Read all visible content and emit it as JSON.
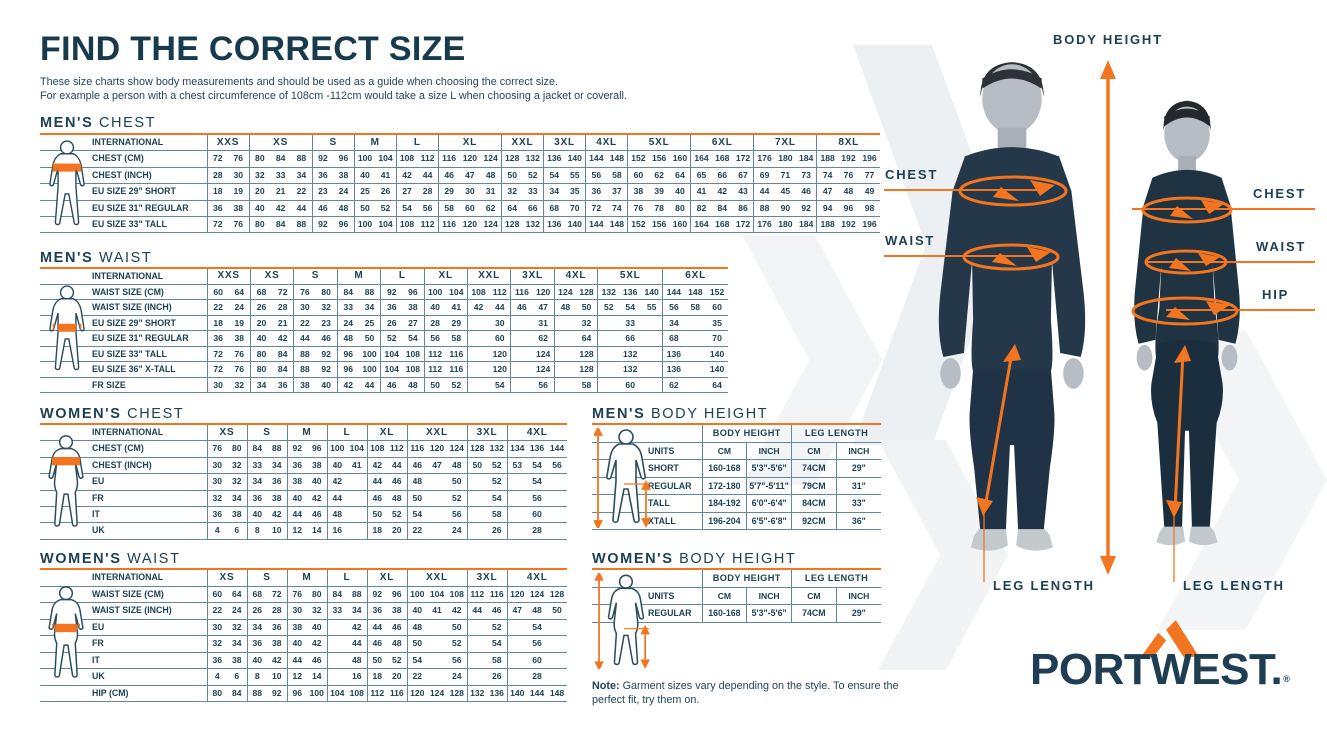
{
  "colors": {
    "navy": "#1d4154",
    "orange": "#f4751f",
    "grid_line": "#64879a",
    "title": "#173a4d"
  },
  "header": {
    "title": "FIND THE CORRECT SIZE",
    "subtitle": [
      "These size charts show body measurements and should be used as a guide when choosing the correct size.",
      "For example a person with a chest circumference of 108cm -112cm would take a size L when choosing a jacket or coverall."
    ]
  },
  "size_tables": {
    "mens_chest": {
      "title_strong": "MEN'S",
      "title_light": "CHEST",
      "corner_label": "INTERNATIONAL",
      "label_w": 167,
      "groups": [
        {
          "label": "XXS",
          "span": 2
        },
        {
          "label": "XS",
          "span": 3
        },
        {
          "label": "S",
          "span": 2
        },
        {
          "label": "M",
          "span": 2
        },
        {
          "label": "L",
          "span": 2
        },
        {
          "label": "XL",
          "span": 3
        },
        {
          "label": "XXL",
          "span": 2
        },
        {
          "label": "3XL",
          "span": 2
        },
        {
          "label": "4XL",
          "span": 2
        },
        {
          "label": "5XL",
          "span": 3
        },
        {
          "label": "6XL",
          "span": 3
        },
        {
          "label": "7XL",
          "span": 3
        },
        {
          "label": "8XL",
          "span": 3
        }
      ],
      "rows": [
        {
          "label": "CHEST (CM)",
          "cells": [
            "72",
            "76",
            "80",
            "84",
            "88",
            "92",
            "96",
            "100",
            "104",
            "108",
            "112",
            "116",
            "120",
            "124",
            "128",
            "132",
            "136",
            "140",
            "144",
            "148",
            "152",
            "156",
            "160",
            "164",
            "168",
            "172",
            "176",
            "180",
            "184",
            "188",
            "192",
            "196"
          ]
        },
        {
          "label": "CHEST (INCH)",
          "cells": [
            "28",
            "30",
            "32",
            "33",
            "34",
            "36",
            "38",
            "40",
            "41",
            "42",
            "44",
            "46",
            "47",
            "48",
            "50",
            "52",
            "54",
            "55",
            "56",
            "58",
            "60",
            "62",
            "64",
            "65",
            "66",
            "67",
            "69",
            "71",
            "73",
            "74",
            "76",
            "77"
          ]
        },
        {
          "label": "EU SIZE 29\" SHORT",
          "cells": [
            "18",
            "19",
            "20",
            "21",
            "22",
            "23",
            "24",
            "25",
            "26",
            "27",
            "28",
            "29",
            "30",
            "31",
            "32",
            "33",
            "34",
            "35",
            "36",
            "37",
            "38",
            "39",
            "40",
            "41",
            "42",
            "43",
            "44",
            "45",
            "46",
            "47",
            "48",
            "49"
          ]
        },
        {
          "label": "EU SIZE 31\" REGULAR",
          "cells": [
            "36",
            "38",
            "40",
            "42",
            "44",
            "46",
            "48",
            "50",
            "52",
            "54",
            "56",
            "58",
            "60",
            "62",
            "64",
            "66",
            "68",
            "70",
            "72",
            "74",
            "76",
            "78",
            "80",
            "82",
            "84",
            "86",
            "88",
            "90",
            "92",
            "94",
            "96",
            "98"
          ]
        },
        {
          "label": "EU SIZE 33\" TALL",
          "cells": [
            "72",
            "76",
            "80",
            "84",
            "88",
            "92",
            "96",
            "100",
            "104",
            "108",
            "112",
            "116",
            "120",
            "124",
            "128",
            "132",
            "136",
            "140",
            "144",
            "148",
            "152",
            "156",
            "160",
            "164",
            "168",
            "172",
            "176",
            "180",
            "184",
            "188",
            "192",
            "196"
          ]
        }
      ]
    },
    "mens_waist": {
      "title_strong": "MEN'S",
      "title_light": "WAIST",
      "corner_label": "INTERNATIONAL",
      "label_w": 167,
      "groups": [
        {
          "label": "XXS",
          "span": 2
        },
        {
          "label": "XS",
          "span": 2
        },
        {
          "label": "S",
          "span": 2
        },
        {
          "label": "M",
          "span": 2
        },
        {
          "label": "L",
          "span": 2
        },
        {
          "label": "XL",
          "span": 2
        },
        {
          "label": "XXL",
          "span": 2
        },
        {
          "label": "3XL",
          "span": 2
        },
        {
          "label": "4XL",
          "span": 2
        },
        {
          "label": "5XL",
          "span": 3
        },
        {
          "label": "6XL",
          "span": 3
        }
      ],
      "rows": [
        {
          "label": "WAIST SIZE (CM)",
          "cells": [
            "60",
            "64",
            "68",
            "72",
            "76",
            "80",
            "84",
            "88",
            "92",
            "96",
            "100",
            "104",
            "108",
            "112",
            "116",
            "120",
            "124",
            "128",
            "132",
            "136",
            "140",
            "144",
            "148",
            "152"
          ]
        },
        {
          "label": "WAIST SIZE (INCH)",
          "cells": [
            "22",
            "24",
            "26",
            "28",
            "30",
            "32",
            "33",
            "34",
            "36",
            "38",
            "40",
            "41",
            "42",
            "44",
            "46",
            "47",
            "48",
            "50",
            "52",
            "54",
            "55",
            "56",
            "58",
            "60"
          ]
        },
        {
          "label": "EU SIZE 29\" SHORT",
          "cells": [
            "18",
            "19",
            "20",
            "21",
            "22",
            "23",
            "24",
            "25",
            "26",
            "27",
            "28",
            "29",
            "",
            "30",
            "",
            "31",
            "",
            "32",
            "",
            "33",
            "",
            "34",
            "",
            "35"
          ]
        },
        {
          "label": "EU SIZE 31\" REGULAR",
          "cells": [
            "36",
            "38",
            "40",
            "42",
            "44",
            "46",
            "48",
            "50",
            "52",
            "54",
            "56",
            "58",
            "",
            "60",
            "",
            "62",
            "",
            "64",
            "",
            "66",
            "",
            "68",
            "",
            "70"
          ]
        },
        {
          "label": "EU SIZE 33\" TALL",
          "cells": [
            "72",
            "76",
            "80",
            "84",
            "88",
            "92",
            "96",
            "100",
            "104",
            "108",
            "112",
            "116",
            "",
            "120",
            "",
            "124",
            "",
            "128",
            "",
            "132",
            "",
            "136",
            "",
            "140"
          ]
        },
        {
          "label": "EU SIZE 36\" X-TALL",
          "cells": [
            "72",
            "76",
            "80",
            "84",
            "88",
            "92",
            "96",
            "100",
            "104",
            "108",
            "112",
            "116",
            "",
            "120",
            "",
            "124",
            "",
            "128",
            "",
            "132",
            "",
            "136",
            "",
            "140"
          ]
        },
        {
          "label": "FR SIZE",
          "cells": [
            "30",
            "32",
            "34",
            "36",
            "38",
            "40",
            "42",
            "44",
            "46",
            "48",
            "50",
            "52",
            "",
            "54",
            "",
            "56",
            "",
            "58",
            "",
            "60",
            "",
            "62",
            "",
            "64"
          ]
        }
      ]
    },
    "womens_chest": {
      "title_strong": "WOMEN'S",
      "title_light": "CHEST",
      "corner_label": "INTERNATIONAL",
      "label_w": 167,
      "groups": [
        {
          "label": "XS",
          "span": 2
        },
        {
          "label": "S",
          "span": 2
        },
        {
          "label": "M",
          "span": 2
        },
        {
          "label": "L",
          "span": 2
        },
        {
          "label": "XL",
          "span": 2
        },
        {
          "label": "XXL",
          "span": 3
        },
        {
          "label": "3XL",
          "span": 2
        },
        {
          "label": "4XL",
          "span": 3
        }
      ],
      "rows": [
        {
          "label": "CHEST (CM)",
          "cells": [
            "76",
            "80",
            "84",
            "88",
            "92",
            "96",
            "100",
            "104",
            "108",
            "112",
            "116",
            "120",
            "124",
            "128",
            "132",
            "134",
            "136",
            "144"
          ]
        },
        {
          "label": "CHEST (INCH)",
          "cells": [
            "30",
            "32",
            "33",
            "34",
            "36",
            "38",
            "40",
            "41",
            "42",
            "44",
            "46",
            "47",
            "48",
            "50",
            "52",
            "53",
            "54",
            "56"
          ]
        },
        {
          "label": "EU",
          "cells": [
            "30",
            "32",
            "34",
            "36",
            "38",
            "40",
            "42",
            "",
            "44",
            "46",
            "48",
            "",
            "50",
            "",
            "52",
            "",
            "54",
            ""
          ]
        },
        {
          "label": "FR",
          "cells": [
            "32",
            "34",
            "36",
            "38",
            "40",
            "42",
            "44",
            "",
            "46",
            "48",
            "50",
            "",
            "52",
            "",
            "54",
            "",
            "56",
            ""
          ]
        },
        {
          "label": "IT",
          "cells": [
            "36",
            "38",
            "40",
            "42",
            "44",
            "46",
            "48",
            "",
            "50",
            "52",
            "54",
            "",
            "56",
            "",
            "58",
            "",
            "60",
            ""
          ]
        },
        {
          "label": "UK",
          "cells": [
            "4",
            "6",
            "8",
            "10",
            "12",
            "14",
            "16",
            "",
            "18",
            "20",
            "22",
            "",
            "24",
            "",
            "26",
            "",
            "28",
            ""
          ]
        }
      ]
    },
    "womens_waist": {
      "title_strong": "WOMEN'S",
      "title_light": "WAIST",
      "corner_label": "INTERNATIONAL",
      "label_w": 167,
      "groups": [
        {
          "label": "XS",
          "span": 2
        },
        {
          "label": "S",
          "span": 2
        },
        {
          "label": "M",
          "span": 2
        },
        {
          "label": "L",
          "span": 2
        },
        {
          "label": "XL",
          "span": 2
        },
        {
          "label": "XXL",
          "span": 3
        },
        {
          "label": "3XL",
          "span": 2
        },
        {
          "label": "4XL",
          "span": 3
        }
      ],
      "rows": [
        {
          "label": "WAIST SIZE (CM)",
          "cells": [
            "60",
            "64",
            "68",
            "72",
            "76",
            "80",
            "84",
            "88",
            "92",
            "96",
            "100",
            "104",
            "108",
            "112",
            "116",
            "120",
            "124",
            "128"
          ]
        },
        {
          "label": "WAIST SIZE (INCH)",
          "cells": [
            "22",
            "24",
            "26",
            "28",
            "30",
            "32",
            "33",
            "34",
            "36",
            "38",
            "40",
            "41",
            "42",
            "44",
            "46",
            "47",
            "48",
            "50"
          ]
        },
        {
          "label": "EU",
          "cells": [
            "30",
            "32",
            "34",
            "36",
            "38",
            "40",
            "",
            "42",
            "44",
            "46",
            "48",
            "",
            "50",
            "",
            "52",
            "",
            "54",
            ""
          ]
        },
        {
          "label": "FR",
          "cells": [
            "32",
            "34",
            "36",
            "38",
            "40",
            "42",
            "",
            "44",
            "46",
            "48",
            "50",
            "",
            "52",
            "",
            "54",
            "",
            "56",
            ""
          ]
        },
        {
          "label": "IT",
          "cells": [
            "36",
            "38",
            "40",
            "42",
            "44",
            "46",
            "",
            "48",
            "50",
            "52",
            "54",
            "",
            "56",
            "",
            "58",
            "",
            "60",
            ""
          ]
        },
        {
          "label": "UK",
          "cells": [
            "4",
            "6",
            "8",
            "10",
            "12",
            "14",
            "",
            "16",
            "18",
            "20",
            "22",
            "",
            "24",
            "",
            "26",
            "",
            "28",
            ""
          ]
        },
        {
          "label": "HIP (CM)",
          "cells": [
            "80",
            "84",
            "88",
            "92",
            "96",
            "100",
            "104",
            "108",
            "112",
            "116",
            "120",
            "124",
            "128",
            "132",
            "136",
            "140",
            "144",
            "148"
          ]
        }
      ]
    }
  },
  "body_tables": {
    "mens": {
      "title_strong": "MEN'S",
      "title_light": "BODY HEIGHT",
      "label_w": 110,
      "group_headers": [
        "BODY HEIGHT",
        "LEG LENGTH"
      ],
      "units_label": "UNITS",
      "units": [
        "CM",
        "INCH",
        "CM",
        "INCH"
      ],
      "rows": [
        {
          "label": "SHORT",
          "cells": [
            "160-168",
            "5'3\"-5'6\"",
            "74CM",
            "29\""
          ]
        },
        {
          "label": "REGULAR",
          "cells": [
            "172-180",
            "5'7\"-5'11\"",
            "79CM",
            "31\""
          ]
        },
        {
          "label": "TALL",
          "cells": [
            "184-192",
            "6'0\"-6'4\"",
            "84CM",
            "33\""
          ]
        },
        {
          "label": "XTALL",
          "cells": [
            "196-204",
            "6'5\"-6'8\"",
            "92CM",
            "36\""
          ]
        }
      ]
    },
    "womens": {
      "title_strong": "WOMEN'S",
      "title_light": "BODY HEIGHT",
      "label_w": 110,
      "group_headers": [
        "BODY HEIGHT",
        "LEG LENGTH"
      ],
      "units_label": "UNITS",
      "units": [
        "CM",
        "INCH",
        "CM",
        "INCH"
      ],
      "rows": [
        {
          "label": "REGULAR",
          "cells": [
            "160-168",
            "5'3\"-5'6\"",
            "74CM",
            "29\""
          ]
        }
      ]
    }
  },
  "note": {
    "strong": "Note:",
    "text": " Garment sizes vary depending on the style. To ensure the perfect fit, try them on."
  },
  "annotations": {
    "body_height": "BODY HEIGHT",
    "chest_left": "CHEST",
    "waist_left": "WAIST",
    "chest_right": "CHEST",
    "waist_right": "WAIST",
    "hip_right": "HIP",
    "leg_length_left": "LEG LENGTH",
    "leg_length_right": "LEG LENGTH"
  },
  "logo": {
    "wordmark": "PORTWEST.",
    "registered": "®"
  }
}
